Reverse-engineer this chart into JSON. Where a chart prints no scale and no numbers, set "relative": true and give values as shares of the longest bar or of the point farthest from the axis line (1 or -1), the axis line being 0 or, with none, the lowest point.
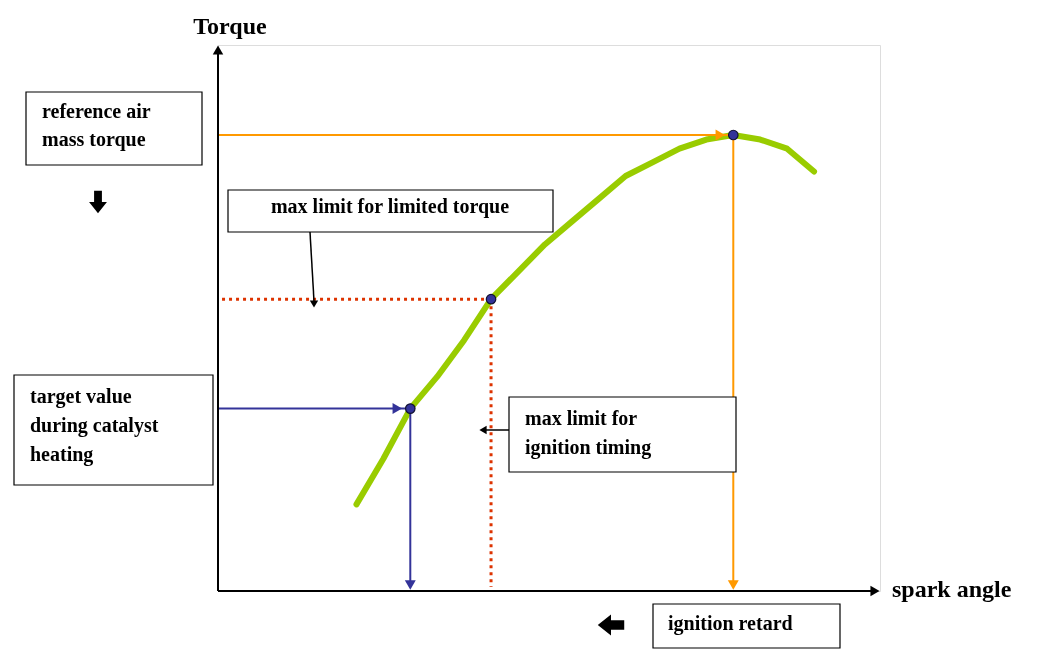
{
  "chart_data": {
    "type": "line",
    "relative": true,
    "xlabel": "spark angle",
    "categories": [
      null,
      null,
      null,
      null,
      null,
      null,
      null,
      null,
      null,
      null,
      null,
      null,
      null,
      null,
      null,
      null,
      null,
      null
    ],
    "series": [
      {
        "color": "#99cc00",
        "values": [
          0.19,
          0.29,
          0.4,
          0.47,
          0.55,
          0.64,
          0.7,
          0.76,
          0.81,
          0.86,
          0.91,
          0.94,
          0.97,
          0.99,
          1.0,
          0.99,
          0.97,
          0.92
        ]
      }
    ],
    "ref_lines": [
      {
        "axis": "y",
        "value": 1.0,
        "color": "#ff9900",
        "line_style": "solid"
      },
      {
        "axis": "y",
        "value": 0.64,
        "color": "#dd3300",
        "line_style": "dotted"
      },
      {
        "axis": "y",
        "value": 0.4,
        "color": "#333399",
        "line_style": "solid"
      }
    ],
    "annotations": [
      "Torque",
      "reference air mass torque",
      "max limit for limited torque",
      "target value during catalyst heating",
      "max limit for ignition timing",
      "ignition retard"
    ]
  }
}
